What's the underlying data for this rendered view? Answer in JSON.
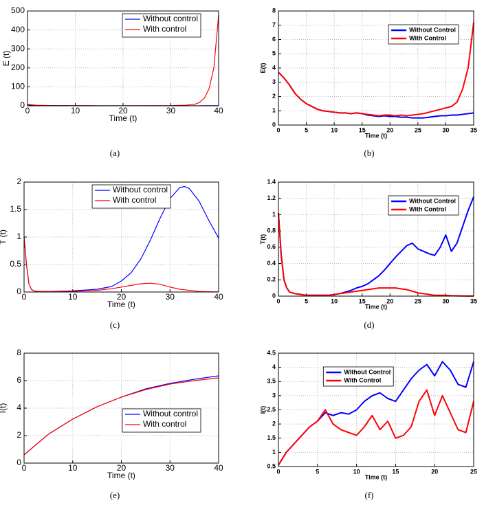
{
  "chart_data": [
    {
      "type": "line",
      "caption": "(a)",
      "xlabel": "Time (t)",
      "ylabel": "E (t)",
      "grid": true,
      "legend": "upper right",
      "x": [
        0,
        1,
        2,
        5,
        10,
        15,
        20,
        25,
        30,
        33,
        35,
        36,
        37,
        38,
        39,
        40
      ],
      "series": [
        {
          "name": "Without control",
          "color": "#0000ff",
          "values": [
            5,
            3,
            2,
            1,
            0.5,
            0.3,
            0.2,
            0.2,
            0.2,
            0.2,
            0.2,
            0.3,
            0.4,
            0.5,
            0.6,
            0.7
          ]
        },
        {
          "name": "With control",
          "color": "#ff0000",
          "values": [
            8,
            5,
            3,
            1,
            0.5,
            0.3,
            0.3,
            0.5,
            1,
            3,
            8,
            18,
            40,
            90,
            200,
            480
          ]
        }
      ],
      "xlim": [
        0,
        40
      ],
      "xticks": [
        0,
        10,
        20,
        30,
        40
      ],
      "ylim": [
        0,
        500
      ],
      "yticks": [
        0,
        100,
        200,
        300,
        400,
        500
      ]
    },
    {
      "type": "line",
      "caption": "(b)",
      "xlabel": "Time (t)",
      "ylabel": "E(t)",
      "grid": true,
      "legend": "upper right",
      "x": [
        0,
        1,
        2,
        3,
        4,
        5,
        6,
        7,
        8,
        9,
        10,
        11,
        12,
        13,
        14,
        15,
        16,
        17,
        18,
        19,
        20,
        21,
        22,
        23,
        24,
        25,
        26,
        27,
        28,
        29,
        30,
        31,
        32,
        33,
        34,
        35
      ],
      "series": [
        {
          "name": "Without Control",
          "color": "#0000ff",
          "values": [
            3.7,
            3.3,
            2.8,
            2.2,
            1.8,
            1.5,
            1.3,
            1.1,
            1.0,
            0.95,
            0.9,
            0.85,
            0.85,
            0.8,
            0.85,
            0.8,
            0.7,
            0.65,
            0.6,
            0.65,
            0.6,
            0.6,
            0.55,
            0.55,
            0.5,
            0.5,
            0.5,
            0.55,
            0.6,
            0.65,
            0.65,
            0.7,
            0.7,
            0.75,
            0.8,
            0.85
          ]
        },
        {
          "name": "With Control",
          "color": "#ff0000",
          "values": [
            3.7,
            3.3,
            2.8,
            2.2,
            1.8,
            1.5,
            1.3,
            1.1,
            1.0,
            0.95,
            0.9,
            0.85,
            0.85,
            0.8,
            0.85,
            0.8,
            0.75,
            0.7,
            0.65,
            0.7,
            0.7,
            0.65,
            0.7,
            0.65,
            0.7,
            0.75,
            0.8,
            0.9,
            1.0,
            1.1,
            1.2,
            1.3,
            1.6,
            2.5,
            4.0,
            7.2
          ]
        }
      ],
      "xlim": [
        0,
        35
      ],
      "xticks": [
        0,
        5,
        10,
        15,
        20,
        25,
        30,
        35
      ],
      "ylim": [
        0,
        8
      ],
      "yticks": [
        0,
        1,
        2,
        3,
        4,
        5,
        6,
        7,
        8
      ]
    },
    {
      "type": "line",
      "caption": "(c)",
      "xlabel": "Time (t)",
      "ylabel": "T (t)",
      "grid": true,
      "legend": "upper center",
      "x": [
        0,
        0.5,
        1,
        1.5,
        2,
        3,
        5,
        10,
        15,
        18,
        20,
        22,
        24,
        26,
        28,
        30,
        32,
        33,
        34,
        36,
        38,
        40
      ],
      "series": [
        {
          "name": "Without control",
          "color": "#0000ff",
          "values": [
            1,
            0.5,
            0.15,
            0.05,
            0.02,
            0.01,
            0.01,
            0.02,
            0.05,
            0.1,
            0.2,
            0.35,
            0.6,
            0.95,
            1.35,
            1.7,
            1.9,
            1.92,
            1.88,
            1.65,
            1.3,
            0.98
          ]
        },
        {
          "name": "With control",
          "color": "#ff0000",
          "values": [
            1,
            0.5,
            0.15,
            0.05,
            0.02,
            0.01,
            0.01,
            0.01,
            0.03,
            0.06,
            0.09,
            0.12,
            0.15,
            0.16,
            0.14,
            0.09,
            0.05,
            0.04,
            0.03,
            0.01,
            0.005,
            0.002
          ]
        }
      ],
      "xlim": [
        0,
        40
      ],
      "xticks": [
        0,
        10,
        20,
        30,
        40
      ],
      "ylim": [
        0,
        2
      ],
      "yticks": [
        0,
        0.5,
        1,
        1.5,
        2
      ]
    },
    {
      "type": "line",
      "caption": "(d)",
      "xlabel": "Time (t)",
      "ylabel": "T(t)",
      "grid": true,
      "legend": "upper right",
      "x": [
        0,
        0.5,
        1,
        1.5,
        2,
        3,
        4,
        5,
        6,
        7,
        8,
        9,
        10,
        11,
        12,
        13,
        14,
        15,
        16,
        17,
        18,
        19,
        20,
        21,
        22,
        23,
        24,
        25,
        26,
        27,
        28,
        29,
        30,
        31,
        32,
        33,
        34,
        35
      ],
      "series": [
        {
          "name": "Without Control",
          "color": "#0000ff",
          "values": [
            1.02,
            0.5,
            0.2,
            0.1,
            0.05,
            0.03,
            0.02,
            0.01,
            0.01,
            0.01,
            0.01,
            0.01,
            0.02,
            0.03,
            0.05,
            0.07,
            0.1,
            0.12,
            0.15,
            0.2,
            0.25,
            0.32,
            0.4,
            0.48,
            0.55,
            0.62,
            0.65,
            0.58,
            0.55,
            0.52,
            0.5,
            0.6,
            0.75,
            0.55,
            0.65,
            0.85,
            1.05,
            1.22
          ]
        },
        {
          "name": "With Control",
          "color": "#ff0000",
          "values": [
            1.02,
            0.5,
            0.2,
            0.1,
            0.05,
            0.03,
            0.02,
            0.01,
            0.01,
            0.01,
            0.01,
            0.01,
            0.02,
            0.03,
            0.04,
            0.05,
            0.06,
            0.07,
            0.08,
            0.09,
            0.1,
            0.1,
            0.1,
            0.1,
            0.09,
            0.08,
            0.06,
            0.04,
            0.03,
            0.02,
            0.01,
            0.01,
            0.01,
            0.005,
            0.003,
            0.002,
            0.001,
            0.001
          ]
        }
      ],
      "xlim": [
        0,
        35
      ],
      "xticks": [
        0,
        5,
        10,
        15,
        20,
        25,
        30,
        35
      ],
      "ylim": [
        0,
        1.4
      ],
      "yticks": [
        0,
        0.2,
        0.4,
        0.6,
        0.8,
        1,
        1.2,
        1.4
      ]
    },
    {
      "type": "line",
      "caption": "(e)",
      "xlabel": "Time (t)",
      "ylabel": "I(t)",
      "grid": true,
      "legend": "lower right",
      "x": [
        0,
        5,
        10,
        15,
        20,
        25,
        30,
        35,
        40
      ],
      "series": [
        {
          "name": "Without control",
          "color": "#0000ff",
          "values": [
            0.6,
            2.1,
            3.2,
            4.1,
            4.8,
            5.4,
            5.8,
            6.1,
            6.35
          ]
        },
        {
          "name": "With control",
          "color": "#ff0000",
          "values": [
            0.6,
            2.1,
            3.2,
            4.1,
            4.8,
            5.35,
            5.75,
            6.0,
            6.2
          ]
        }
      ],
      "xlim": [
        0,
        40
      ],
      "xticks": [
        0,
        10,
        20,
        30,
        40
      ],
      "ylim": [
        0,
        8
      ],
      "yticks": [
        0,
        2,
        4,
        6,
        8
      ]
    },
    {
      "type": "line",
      "caption": "(f)",
      "xlabel": "Time (t)",
      "ylabel": "I(t)",
      "grid": true,
      "legend": "upper left",
      "x": [
        0,
        1,
        2,
        3,
        4,
        5,
        6,
        7,
        8,
        9,
        10,
        11,
        12,
        13,
        14,
        15,
        16,
        17,
        18,
        19,
        20,
        21,
        22,
        23,
        24,
        25
      ],
      "series": [
        {
          "name": "Without Control",
          "color": "#0000ff",
          "values": [
            0.55,
            1.0,
            1.3,
            1.6,
            1.9,
            2.1,
            2.4,
            2.3,
            2.4,
            2.35,
            2.5,
            2.8,
            3.0,
            3.1,
            2.9,
            2.8,
            3.2,
            3.6,
            3.9,
            4.1,
            3.7,
            4.2,
            3.9,
            3.4,
            3.3,
            4.2
          ]
        },
        {
          "name": "With Control",
          "color": "#ff0000",
          "values": [
            0.55,
            1.0,
            1.3,
            1.6,
            1.9,
            2.1,
            2.5,
            2.0,
            1.8,
            1.7,
            1.6,
            1.9,
            2.3,
            1.8,
            2.1,
            1.5,
            1.6,
            1.9,
            2.8,
            3.2,
            2.3,
            3.0,
            2.4,
            1.8,
            1.7,
            2.8
          ]
        }
      ],
      "xlim": [
        0,
        25
      ],
      "xticks": [
        0,
        5,
        10,
        15,
        20,
        25
      ],
      "ylim": [
        0.5,
        4.5
      ],
      "yticks": [
        0.5,
        1,
        1.5,
        2,
        2.5,
        3,
        3.5,
        4,
        4.5
      ]
    }
  ]
}
